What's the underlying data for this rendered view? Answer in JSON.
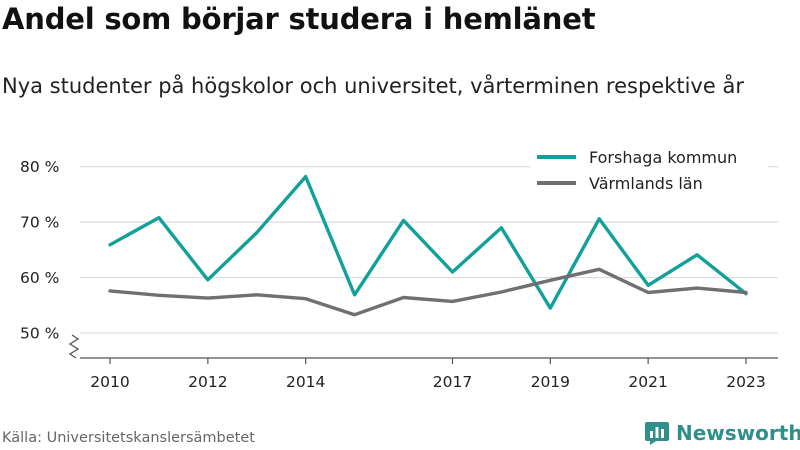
{
  "title": "Andel som börjar studera i hemlänet",
  "subtitle": "Nya studenter på högskolor och universitet, vårterminen respektive år",
  "source": "Källa: Universitetskanslersämbetet",
  "brand": {
    "name": "Newsworthy",
    "icon": "newsworthy-logo-icon",
    "color": "#2e8f8b"
  },
  "chart_data": {
    "type": "line",
    "title": "Andel som börjar studera i hemlänet",
    "subtitle": "Nya studenter på högskolor och universitet, vårterminen respektive år",
    "xlabel": "",
    "ylabel": "",
    "x": [
      2010,
      2011,
      2012,
      2013,
      2014,
      2015,
      2016,
      2017,
      2018,
      2019,
      2020,
      2021,
      2022,
      2023
    ],
    "xticks": [
      "2010",
      "2012",
      "2014",
      "2017",
      "2019",
      "2021",
      "2023"
    ],
    "xtick_values": [
      2010,
      2012,
      2014,
      2017,
      2019,
      2021,
      2023
    ],
    "yticks": [
      "50 %",
      "60 %",
      "70 %",
      "80 %"
    ],
    "ytick_values": [
      50,
      60,
      70,
      80
    ],
    "ylim": [
      45.5,
      83
    ],
    "xlim": [
      2009.4,
      2023.25
    ],
    "y_axis_break": true,
    "grid": true,
    "legend_position": "top-right",
    "series": [
      {
        "name": "Forshaga kommun",
        "color": "#13a09a",
        "values": [
          65.9,
          70.8,
          59.6,
          68.1,
          78.2,
          56.9,
          70.3,
          61.0,
          69.0,
          54.5,
          70.6,
          58.6,
          64.1,
          57.1
        ]
      },
      {
        "name": "Värmlands län",
        "color": "#6f6f74",
        "values": [
          57.6,
          56.8,
          56.3,
          56.9,
          56.2,
          53.3,
          56.4,
          55.7,
          57.4,
          59.5,
          61.5,
          57.3,
          58.1,
          57.3
        ]
      }
    ]
  }
}
